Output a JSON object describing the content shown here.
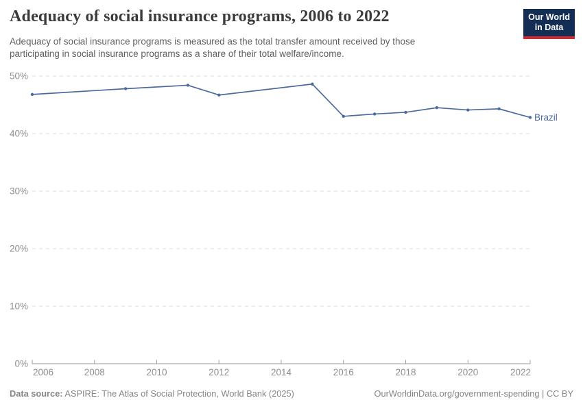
{
  "header": {
    "title": "Adequacy of social insurance programs, 2006 to 2022",
    "subtitle": "Adequacy of social insurance programs is measured as the total transfer amount received by those participating in social insurance programs as a share of their total welfare/income.",
    "logo_line1": "Our World",
    "logo_line2": "in Data"
  },
  "chart_data": {
    "type": "line",
    "title": "Adequacy of social insurance programs, 2006 to 2022",
    "xlabel": "",
    "ylabel": "",
    "xlim": [
      2006,
      2022
    ],
    "ylim": [
      0,
      50
    ],
    "grid": "horizontal-dashed",
    "legend_position": "end-of-line-label",
    "xticks": [
      2006,
      2008,
      2010,
      2012,
      2014,
      2016,
      2018,
      2020,
      2022
    ],
    "yticks": [
      0,
      10,
      20,
      30,
      40,
      50
    ],
    "ytick_suffix": "%",
    "series": [
      {
        "name": "Brazil",
        "color": "#4c6a9c",
        "x": [
          2006,
          2009,
          2011,
          2012,
          2015,
          2016,
          2017,
          2018,
          2019,
          2020,
          2021,
          2022
        ],
        "values": [
          46.8,
          47.8,
          48.4,
          46.7,
          48.6,
          43.0,
          43.4,
          43.7,
          44.5,
          44.1,
          44.3,
          42.8
        ]
      }
    ]
  },
  "footer": {
    "source_label": "Data source:",
    "source_text": " ASPIRE: The Atlas of Social Protection, World Bank (2025)",
    "credit": "OurWorldinData.org/government-spending | CC BY"
  },
  "colors": {
    "accent_line": "#4c6a9c",
    "logo_bg": "#142d54",
    "logo_red": "#d8252f",
    "grid": "#dcdcdc",
    "axis": "#9f9f9f",
    "tick_label": "#8e8e8e",
    "title": "#3c3a3a",
    "subtitle": "#5e5e5e",
    "footer": "#858585"
  }
}
